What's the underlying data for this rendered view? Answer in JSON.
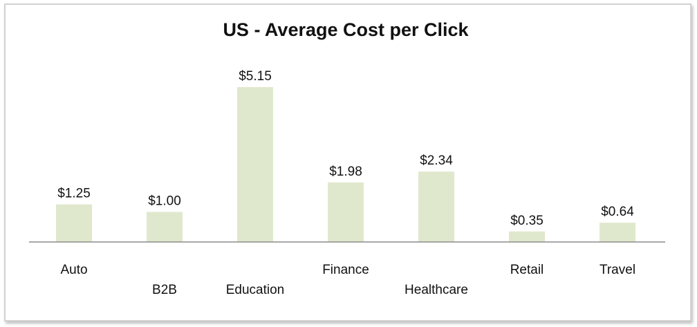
{
  "chart_data": {
    "type": "bar",
    "title": "US - Average Cost per Click",
    "xlabel": "",
    "ylabel": "",
    "categories": [
      "Auto",
      "B2B",
      "Education",
      "Finance",
      "Healthcare",
      "Retail",
      "Travel"
    ],
    "values": [
      1.25,
      1.0,
      5.15,
      1.98,
      2.34,
      0.35,
      0.64
    ],
    "data_labels": [
      "$1.25",
      "$1.00",
      "$5.15",
      "$1.98",
      "$2.34",
      "$0.35",
      "$0.64"
    ],
    "label_stagger": [
      false,
      true,
      true,
      false,
      true,
      false,
      false
    ],
    "ylim": [
      0,
      5.15
    ],
    "grid": false,
    "legend": "none",
    "bar_color": "#dfe8cc",
    "axis_color": "#8c8c8c"
  }
}
